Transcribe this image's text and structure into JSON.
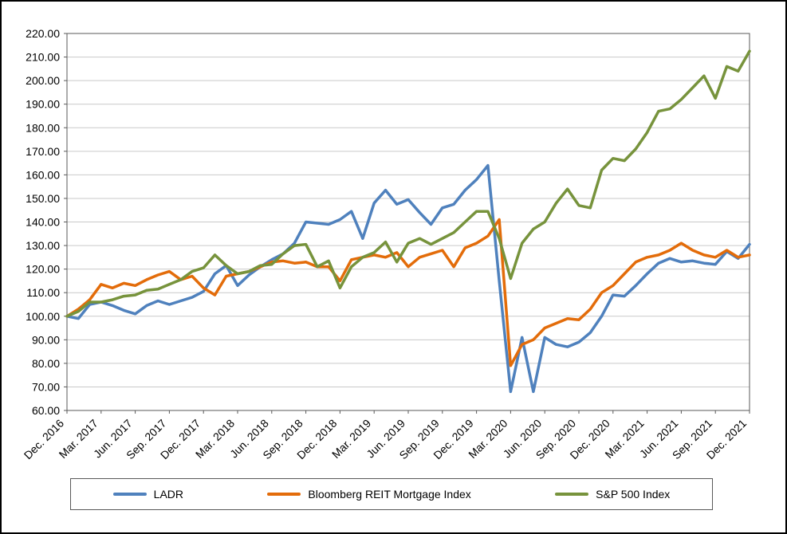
{
  "figure": {
    "background": "#FFFFFF",
    "border_color": "#000000"
  },
  "chart": {
    "colors": {
      "ladr": "#4F81BD",
      "reit": "#E36C0A",
      "sp500": "#77933C",
      "gridline": "#C9C9C9",
      "axis": "#595959",
      "text": "#000000"
    }
  },
  "chart_data": {
    "type": "line",
    "title": "",
    "xlabel": "",
    "ylabel": "",
    "x_unit": "monthly, Dec. 2016 through Dec. 2021 (61 points, indexed to 100 at Dec. 2016)",
    "ylim": [
      60,
      220
    ],
    "y_ticks": [
      60,
      70,
      80,
      90,
      100,
      110,
      120,
      130,
      140,
      150,
      160,
      170,
      180,
      190,
      200,
      210,
      220
    ],
    "y_tick_format": "0.00",
    "grid": "horizontal",
    "legend_position": "bottom",
    "x_tick_positions": [
      0,
      3,
      6,
      9,
      12,
      15,
      18,
      21,
      24,
      27,
      30,
      33,
      36,
      39,
      42,
      45,
      48,
      51,
      54,
      57,
      60
    ],
    "x_tick_labels": [
      "Dec. 2016",
      "Mar. 2017",
      "Jun. 2017",
      "Sep. 2017",
      "Dec. 2017",
      "Mar. 2018",
      "Jun. 2018",
      "Sep. 2018",
      "Dec. 2018",
      "Mar. 2019",
      "Jun. 2019",
      "Sep. 2019",
      "Dec. 2019",
      "Mar. 2020",
      "Jun. 2020",
      "Sep. 2020",
      "Dec. 2020",
      "Mar. 2021",
      "Jun. 2021",
      "Sep. 2021",
      "Dec. 2021"
    ],
    "series": [
      {
        "key": "ladr",
        "name": "LADR",
        "color": "#4F81BD",
        "values": [
          100,
          99,
          105,
          106,
          104.5,
          102.5,
          101,
          104.5,
          106.5,
          105,
          106.5,
          108,
          110.5,
          118,
          121.5,
          113,
          117.5,
          121,
          124,
          126.5,
          131,
          140,
          139.5,
          139,
          141,
          144.5,
          133,
          148,
          153.5,
          147.5,
          149.5,
          144,
          139,
          146,
          147.5,
          153.5,
          158,
          164,
          115,
          68,
          91,
          68,
          91,
          88,
          87,
          89,
          93,
          100,
          109,
          108.5,
          113,
          118,
          122.5,
          124.5,
          123,
          123.5,
          122.5,
          122,
          127.5,
          124.5,
          130.5
        ]
      },
      {
        "key": "reit",
        "name": "Bloomberg REIT Mortgage Index",
        "color": "#E36C0A",
        "values": [
          100,
          103,
          107,
          113.5,
          112,
          114,
          113,
          115.5,
          117.5,
          119,
          115.5,
          117,
          112,
          109,
          117,
          118,
          119,
          121,
          123,
          123.5,
          122.5,
          123,
          121,
          121,
          115,
          124,
          125,
          126,
          125,
          127,
          121,
          125,
          126.5,
          128,
          121,
          129,
          131,
          134,
          141,
          79,
          88,
          90,
          95,
          97,
          99,
          98.5,
          103,
          110,
          113,
          118,
          123,
          125,
          126,
          128,
          131,
          128,
          126,
          125,
          128,
          125,
          126
        ]
      },
      {
        "key": "sp500",
        "name": "S&P 500 Index",
        "color": "#77933C",
        "values": [
          100,
          102,
          106,
          106,
          107,
          108.5,
          109,
          111,
          111.5,
          113.5,
          115.5,
          119,
          120.5,
          126,
          121.5,
          118,
          119,
          121.5,
          122,
          126.5,
          130,
          130.5,
          121,
          123.5,
          112,
          121,
          125,
          127,
          131.5,
          123,
          131,
          133,
          130.5,
          133,
          135.5,
          140,
          144.5,
          144.5,
          133,
          116,
          131,
          137,
          140,
          148,
          154,
          147,
          146,
          162,
          167,
          166,
          171,
          178,
          187,
          188,
          192,
          197,
          202,
          192.5,
          206,
          204,
          212.5
        ]
      }
    ]
  }
}
